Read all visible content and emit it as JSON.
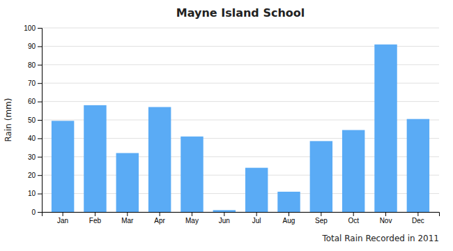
{
  "chart_data": {
    "type": "bar",
    "title": "Mayne Island School",
    "xlabel": "Total Rain Recorded in 2011",
    "ylabel": "Rain (mm)",
    "categories": [
      "Jan",
      "Feb",
      "Mar",
      "Apr",
      "May",
      "Jun",
      "Jul",
      "Aug",
      "Sep",
      "Oct",
      "Nov",
      "Dec"
    ],
    "values": [
      49.5,
      58,
      32,
      57,
      41,
      1,
      24,
      11,
      38.5,
      44.5,
      91,
      50.5
    ],
    "color": "#5aabf5",
    "ylim": [
      0,
      100
    ],
    "yticks": [
      0,
      10,
      20,
      30,
      40,
      50,
      60,
      70,
      80,
      90,
      100
    ],
    "grid": true
  }
}
